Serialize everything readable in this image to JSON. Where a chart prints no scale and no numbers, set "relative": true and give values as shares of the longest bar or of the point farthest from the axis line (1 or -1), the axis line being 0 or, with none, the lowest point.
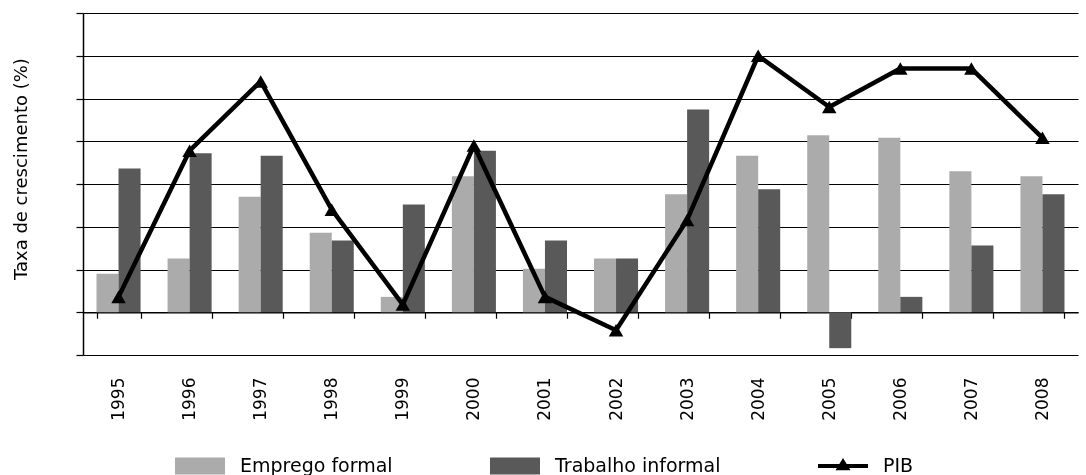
{
  "chart_data": {
    "type": "bar",
    "relative": true,
    "ylabel": "Taxa de crescimento (%)",
    "categories": [
      "1995",
      "1996",
      "1997",
      "1998",
      "1999",
      "2000",
      "2001",
      "2002",
      "2003",
      "2004",
      "2005",
      "2006",
      "2007",
      "2008"
    ],
    "series": [
      {
        "name": "Emprego formal",
        "color": "#ababab",
        "values": [
          0.15,
          0.21,
          0.45,
          0.31,
          0.06,
          0.53,
          0.17,
          0.21,
          0.46,
          0.61,
          0.69,
          0.68,
          0.55,
          0.53
        ]
      },
      {
        "name": "Trabalho informal",
        "color": "#595959",
        "values": [
          0.56,
          0.62,
          0.61,
          0.28,
          0.42,
          0.63,
          0.28,
          0.21,
          0.79,
          0.48,
          -0.14,
          0.06,
          0.26,
          0.46
        ]
      },
      {
        "name": "PIB",
        "type": "line",
        "color": "#000000",
        "values": [
          0.06,
          0.63,
          0.9,
          0.4,
          0.03,
          0.65,
          0.06,
          -0.07,
          0.36,
          1,
          0.8,
          0.95,
          0.95,
          0.68
        ]
      }
    ],
    "grid": "y",
    "tick_labels": "x",
    "legend": "bottom",
    "marker": "triangle",
    "line_style": "solid"
  }
}
